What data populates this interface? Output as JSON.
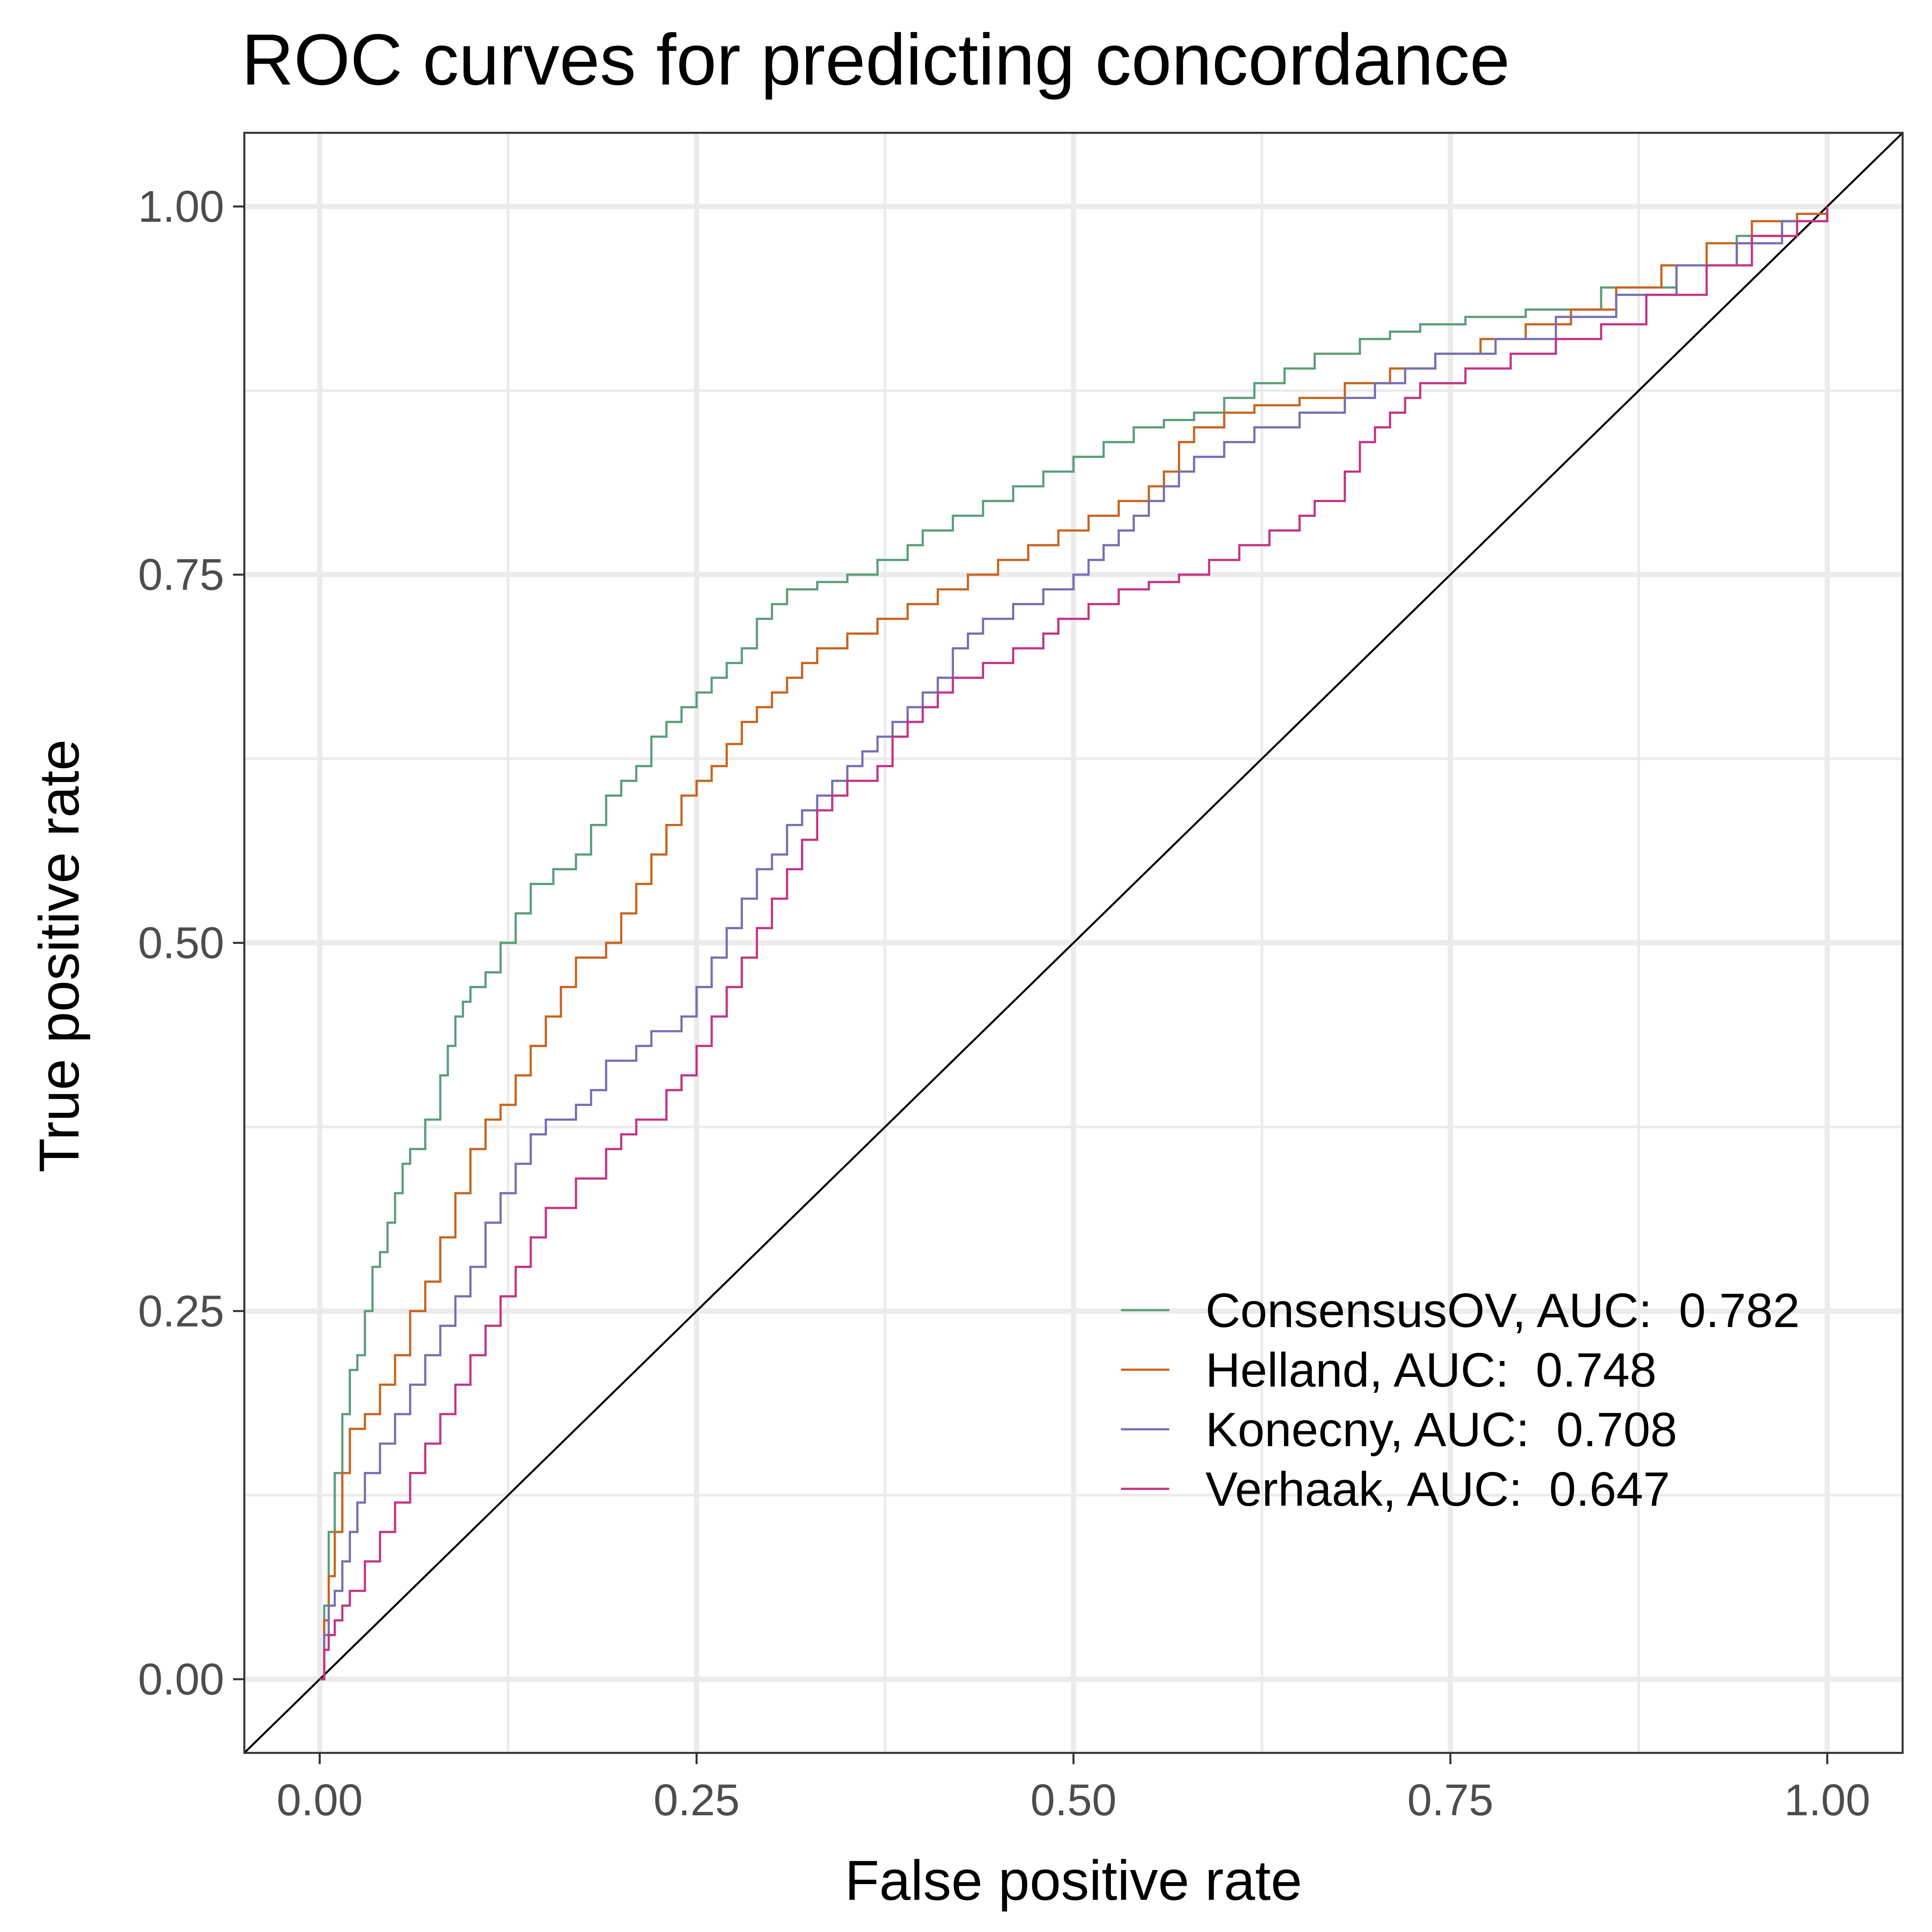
{
  "chart_data": {
    "type": "line",
    "title": "ROC curves for predicting concordance",
    "xlabel": "False positive rate",
    "ylabel": "True positive rate",
    "xlim": [
      -0.05,
      1.05
    ],
    "ylim": [
      -0.05,
      1.05
    ],
    "x_ticks": [
      "0.00",
      "0.25",
      "0.50",
      "0.75",
      "1.00"
    ],
    "y_ticks": [
      "0.00",
      "0.25",
      "0.50",
      "0.75",
      "1.00"
    ],
    "grid": true,
    "legend_position": "bottom-right inside",
    "reference_line": {
      "from": [
        0,
        0
      ],
      "to": [
        1,
        1
      ],
      "color": "#000000"
    },
    "series": [
      {
        "name": "ConsensusOV, AUC:  0.782",
        "color": "#5a9e7b",
        "points": [
          [
            0,
            0
          ],
          [
            0.003,
            0.05
          ],
          [
            0.006,
            0.1
          ],
          [
            0.01,
            0.14
          ],
          [
            0.015,
            0.18
          ],
          [
            0.02,
            0.21
          ],
          [
            0.025,
            0.22
          ],
          [
            0.03,
            0.25
          ],
          [
            0.035,
            0.28
          ],
          [
            0.04,
            0.29
          ],
          [
            0.045,
            0.31
          ],
          [
            0.05,
            0.33
          ],
          [
            0.055,
            0.35
          ],
          [
            0.06,
            0.36
          ],
          [
            0.07,
            0.38
          ],
          [
            0.08,
            0.41
          ],
          [
            0.085,
            0.43
          ],
          [
            0.09,
            0.45
          ],
          [
            0.095,
            0.46
          ],
          [
            0.1,
            0.47
          ],
          [
            0.11,
            0.48
          ],
          [
            0.12,
            0.5
          ],
          [
            0.13,
            0.52
          ],
          [
            0.14,
            0.54
          ],
          [
            0.155,
            0.55
          ],
          [
            0.17,
            0.56
          ],
          [
            0.18,
            0.58
          ],
          [
            0.19,
            0.6
          ],
          [
            0.2,
            0.61
          ],
          [
            0.21,
            0.62
          ],
          [
            0.22,
            0.64
          ],
          [
            0.23,
            0.65
          ],
          [
            0.24,
            0.66
          ],
          [
            0.25,
            0.67
          ],
          [
            0.26,
            0.68
          ],
          [
            0.27,
            0.69
          ],
          [
            0.28,
            0.7
          ],
          [
            0.29,
            0.72
          ],
          [
            0.3,
            0.73
          ],
          [
            0.31,
            0.74
          ],
          [
            0.33,
            0.745
          ],
          [
            0.35,
            0.75
          ],
          [
            0.37,
            0.76
          ],
          [
            0.39,
            0.77
          ],
          [
            0.4,
            0.78
          ],
          [
            0.42,
            0.79
          ],
          [
            0.44,
            0.8
          ],
          [
            0.46,
            0.81
          ],
          [
            0.48,
            0.82
          ],
          [
            0.5,
            0.83
          ],
          [
            0.52,
            0.84
          ],
          [
            0.54,
            0.85
          ],
          [
            0.56,
            0.855
          ],
          [
            0.58,
            0.86
          ],
          [
            0.6,
            0.87
          ],
          [
            0.62,
            0.88
          ],
          [
            0.64,
            0.89
          ],
          [
            0.66,
            0.9
          ],
          [
            0.69,
            0.91
          ],
          [
            0.71,
            0.915
          ],
          [
            0.73,
            0.92
          ],
          [
            0.76,
            0.925
          ],
          [
            0.8,
            0.93
          ],
          [
            0.85,
            0.945
          ],
          [
            0.9,
            0.96
          ],
          [
            0.94,
            0.98
          ],
          [
            0.97,
            0.99
          ],
          [
            1.0,
            1.0
          ]
        ]
      },
      {
        "name": "Helland, AUC:  0.748",
        "color": "#c8641e",
        "points": [
          [
            0,
            0
          ],
          [
            0.003,
            0.04
          ],
          [
            0.006,
            0.07
          ],
          [
            0.01,
            0.1
          ],
          [
            0.015,
            0.14
          ],
          [
            0.02,
            0.17
          ],
          [
            0.03,
            0.18
          ],
          [
            0.04,
            0.2
          ],
          [
            0.05,
            0.22
          ],
          [
            0.06,
            0.25
          ],
          [
            0.07,
            0.27
          ],
          [
            0.08,
            0.3
          ],
          [
            0.09,
            0.33
          ],
          [
            0.1,
            0.36
          ],
          [
            0.11,
            0.38
          ],
          [
            0.12,
            0.39
          ],
          [
            0.13,
            0.41
          ],
          [
            0.14,
            0.43
          ],
          [
            0.15,
            0.45
          ],
          [
            0.16,
            0.47
          ],
          [
            0.17,
            0.49
          ],
          [
            0.19,
            0.5
          ],
          [
            0.2,
            0.52
          ],
          [
            0.21,
            0.54
          ],
          [
            0.22,
            0.56
          ],
          [
            0.23,
            0.58
          ],
          [
            0.24,
            0.6
          ],
          [
            0.25,
            0.61
          ],
          [
            0.26,
            0.62
          ],
          [
            0.27,
            0.635
          ],
          [
            0.28,
            0.65
          ],
          [
            0.29,
            0.66
          ],
          [
            0.3,
            0.67
          ],
          [
            0.31,
            0.68
          ],
          [
            0.32,
            0.69
          ],
          [
            0.33,
            0.7
          ],
          [
            0.35,
            0.71
          ],
          [
            0.37,
            0.72
          ],
          [
            0.39,
            0.73
          ],
          [
            0.41,
            0.74
          ],
          [
            0.43,
            0.75
          ],
          [
            0.45,
            0.76
          ],
          [
            0.47,
            0.77
          ],
          [
            0.49,
            0.78
          ],
          [
            0.51,
            0.79
          ],
          [
            0.53,
            0.8
          ],
          [
            0.55,
            0.81
          ],
          [
            0.56,
            0.82
          ],
          [
            0.57,
            0.84
          ],
          [
            0.58,
            0.85
          ],
          [
            0.6,
            0.86
          ],
          [
            0.62,
            0.865
          ],
          [
            0.65,
            0.87
          ],
          [
            0.68,
            0.88
          ],
          [
            0.71,
            0.89
          ],
          [
            0.74,
            0.9
          ],
          [
            0.77,
            0.91
          ],
          [
            0.8,
            0.92
          ],
          [
            0.83,
            0.93
          ],
          [
            0.86,
            0.945
          ],
          [
            0.89,
            0.96
          ],
          [
            0.92,
            0.975
          ],
          [
            0.95,
            0.99
          ],
          [
            0.98,
            0.995
          ],
          [
            1.0,
            1.0
          ]
        ]
      },
      {
        "name": "Konecny, AUC:  0.708",
        "color": "#7570b3",
        "points": [
          [
            0,
            0
          ],
          [
            0.003,
            0.03
          ],
          [
            0.006,
            0.05
          ],
          [
            0.01,
            0.06
          ],
          [
            0.015,
            0.08
          ],
          [
            0.02,
            0.1
          ],
          [
            0.025,
            0.12
          ],
          [
            0.03,
            0.14
          ],
          [
            0.04,
            0.16
          ],
          [
            0.05,
            0.18
          ],
          [
            0.06,
            0.2
          ],
          [
            0.07,
            0.22
          ],
          [
            0.08,
            0.24
          ],
          [
            0.09,
            0.26
          ],
          [
            0.1,
            0.28
          ],
          [
            0.11,
            0.31
          ],
          [
            0.12,
            0.33
          ],
          [
            0.13,
            0.35
          ],
          [
            0.14,
            0.37
          ],
          [
            0.15,
            0.38
          ],
          [
            0.17,
            0.39
          ],
          [
            0.18,
            0.4
          ],
          [
            0.19,
            0.42
          ],
          [
            0.21,
            0.43
          ],
          [
            0.22,
            0.44
          ],
          [
            0.24,
            0.45
          ],
          [
            0.25,
            0.47
          ],
          [
            0.26,
            0.49
          ],
          [
            0.27,
            0.51
          ],
          [
            0.28,
            0.53
          ],
          [
            0.29,
            0.55
          ],
          [
            0.3,
            0.56
          ],
          [
            0.31,
            0.58
          ],
          [
            0.32,
            0.59
          ],
          [
            0.33,
            0.6
          ],
          [
            0.34,
            0.61
          ],
          [
            0.35,
            0.62
          ],
          [
            0.36,
            0.63
          ],
          [
            0.37,
            0.64
          ],
          [
            0.38,
            0.65
          ],
          [
            0.39,
            0.66
          ],
          [
            0.4,
            0.67
          ],
          [
            0.41,
            0.68
          ],
          [
            0.42,
            0.7
          ],
          [
            0.43,
            0.71
          ],
          [
            0.44,
            0.72
          ],
          [
            0.46,
            0.73
          ],
          [
            0.48,
            0.74
          ],
          [
            0.5,
            0.75
          ],
          [
            0.51,
            0.76
          ],
          [
            0.52,
            0.77
          ],
          [
            0.53,
            0.78
          ],
          [
            0.54,
            0.79
          ],
          [
            0.55,
            0.8
          ],
          [
            0.56,
            0.81
          ],
          [
            0.57,
            0.82
          ],
          [
            0.58,
            0.83
          ],
          [
            0.6,
            0.84
          ],
          [
            0.62,
            0.85
          ],
          [
            0.65,
            0.86
          ],
          [
            0.68,
            0.87
          ],
          [
            0.7,
            0.88
          ],
          [
            0.72,
            0.89
          ],
          [
            0.74,
            0.9
          ],
          [
            0.78,
            0.91
          ],
          [
            0.82,
            0.925
          ],
          [
            0.86,
            0.94
          ],
          [
            0.9,
            0.96
          ],
          [
            0.94,
            0.975
          ],
          [
            0.97,
            0.99
          ],
          [
            1.0,
            1.0
          ]
        ]
      },
      {
        "name": "Verhaak, AUC:  0.647",
        "color": "#c33584",
        "points": [
          [
            0,
            0
          ],
          [
            0.003,
            0.02
          ],
          [
            0.006,
            0.03
          ],
          [
            0.01,
            0.04
          ],
          [
            0.015,
            0.05
          ],
          [
            0.02,
            0.06
          ],
          [
            0.03,
            0.08
          ],
          [
            0.04,
            0.1
          ],
          [
            0.05,
            0.12
          ],
          [
            0.06,
            0.14
          ],
          [
            0.07,
            0.16
          ],
          [
            0.08,
            0.18
          ],
          [
            0.09,
            0.2
          ],
          [
            0.1,
            0.22
          ],
          [
            0.11,
            0.24
          ],
          [
            0.12,
            0.26
          ],
          [
            0.13,
            0.28
          ],
          [
            0.14,
            0.3
          ],
          [
            0.15,
            0.32
          ],
          [
            0.17,
            0.34
          ],
          [
            0.19,
            0.36
          ],
          [
            0.2,
            0.37
          ],
          [
            0.21,
            0.38
          ],
          [
            0.23,
            0.4
          ],
          [
            0.24,
            0.41
          ],
          [
            0.25,
            0.43
          ],
          [
            0.26,
            0.45
          ],
          [
            0.27,
            0.47
          ],
          [
            0.28,
            0.49
          ],
          [
            0.29,
            0.51
          ],
          [
            0.3,
            0.53
          ],
          [
            0.31,
            0.55
          ],
          [
            0.32,
            0.57
          ],
          [
            0.33,
            0.59
          ],
          [
            0.34,
            0.6
          ],
          [
            0.35,
            0.61
          ],
          [
            0.37,
            0.62
          ],
          [
            0.38,
            0.64
          ],
          [
            0.39,
            0.65
          ],
          [
            0.4,
            0.66
          ],
          [
            0.41,
            0.67
          ],
          [
            0.42,
            0.68
          ],
          [
            0.44,
            0.69
          ],
          [
            0.46,
            0.7
          ],
          [
            0.48,
            0.71
          ],
          [
            0.49,
            0.72
          ],
          [
            0.51,
            0.73
          ],
          [
            0.53,
            0.74
          ],
          [
            0.55,
            0.745
          ],
          [
            0.57,
            0.75
          ],
          [
            0.59,
            0.76
          ],
          [
            0.61,
            0.77
          ],
          [
            0.63,
            0.78
          ],
          [
            0.65,
            0.79
          ],
          [
            0.66,
            0.8
          ],
          [
            0.68,
            0.82
          ],
          [
            0.69,
            0.84
          ],
          [
            0.7,
            0.85
          ],
          [
            0.71,
            0.86
          ],
          [
            0.72,
            0.87
          ],
          [
            0.73,
            0.88
          ],
          [
            0.76,
            0.89
          ],
          [
            0.79,
            0.9
          ],
          [
            0.82,
            0.91
          ],
          [
            0.85,
            0.92
          ],
          [
            0.88,
            0.94
          ],
          [
            0.92,
            0.96
          ],
          [
            0.95,
            0.98
          ],
          [
            0.98,
            0.99
          ],
          [
            1.0,
            1.0
          ]
        ]
      }
    ]
  }
}
